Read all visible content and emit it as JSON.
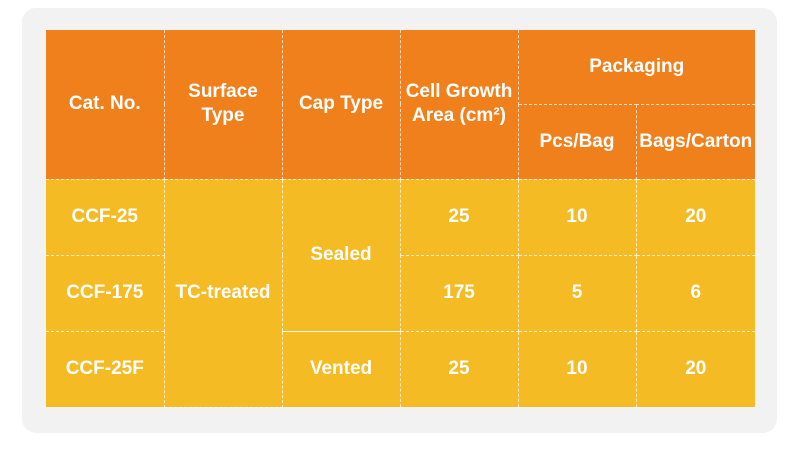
{
  "table": {
    "headers": {
      "cat_no": "Cat. No.",
      "surface_type": "Surface Type",
      "cap_type": "Cap Type",
      "cell_growth_area_line1": "Cell Growth",
      "cell_growth_area_line2": "Area (cm²)",
      "packaging": "Packaging",
      "pcs_per_bag": "Pcs/Bag",
      "bags_per_carton": "Bags/Carton"
    },
    "rows": [
      {
        "cat_no": "CCF-25",
        "area": "25",
        "pcs_per_bag": "10",
        "bags_per_carton": "20"
      },
      {
        "cat_no": "CCF-175",
        "area": "175",
        "pcs_per_bag": "5",
        "bags_per_carton": "6"
      },
      {
        "cat_no": "CCF-25F",
        "area": "25",
        "pcs_per_bag": "10",
        "bags_per_carton": "20"
      }
    ],
    "merged": {
      "surface_type": "TC-treated",
      "cap_sealed": "Sealed",
      "cap_vented": "Vented"
    }
  },
  "colors": {
    "header_bg": "#f0801c",
    "body_bg": "#f5bb25",
    "panel_bg": "#f2f2f2",
    "text": "#ffffff"
  }
}
